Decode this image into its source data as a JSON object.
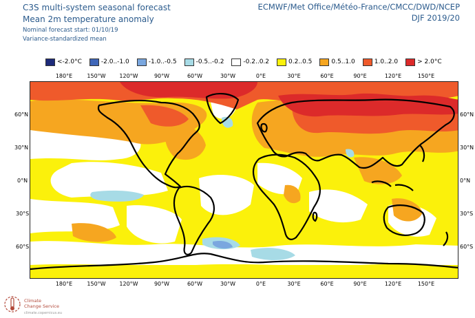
{
  "header": {
    "title_line1": "C3S multi-system seasonal forecast",
    "title_line2": "Mean 2m temperature anomaly",
    "start": "Nominal forecast start: 01/10/19",
    "method": "Variance-standardized mean",
    "centres": "ECMWF/Met Office/Météo-France/CMCC/DWD/NCEP",
    "season": "DJF 2019/20"
  },
  "legend": [
    {
      "label": "<-2.0°C",
      "color": "#1d2a7a"
    },
    {
      "label": "-2.0..-1.0",
      "color": "#3f66b8"
    },
    {
      "label": "-1.0..-0.5",
      "color": "#7aa7df"
    },
    {
      "label": "-0.5..-0.2",
      "color": "#a7dbe6"
    },
    {
      "label": "-0.2..0.2",
      "color": "#ffffff"
    },
    {
      "label": "0.2..0.5",
      "color": "#fbf10b"
    },
    {
      "label": "0.5..1.0",
      "color": "#f6a620"
    },
    {
      "label": "1.0..2.0",
      "color": "#ef5a2b"
    },
    {
      "label": "> 2.0°C",
      "color": "#dc2a2a"
    }
  ],
  "axes": {
    "lon_top": [
      "180°E",
      "150°W",
      "120°W",
      "90°W",
      "60°W",
      "30°W",
      "0°E",
      "30°E",
      "60°E",
      "90°E",
      "120°E",
      "150°E"
    ],
    "lon_bottom": [
      "180°E",
      "150°W",
      "120°W",
      "90°W",
      "60°W",
      "30°W",
      "0°E",
      "30°E",
      "60°E",
      "90°E",
      "120°E",
      "150°E"
    ],
    "lat_left": [
      "60°N",
      "30°N",
      "0°N",
      "30°S",
      "60°S"
    ],
    "lat_right": [
      "60°N",
      "30°N",
      "0°N",
      "30°S",
      "60°S"
    ]
  },
  "logo": {
    "line1": "Climate",
    "line2": "Change Service",
    "url": "climate.copernicus.eu"
  }
}
